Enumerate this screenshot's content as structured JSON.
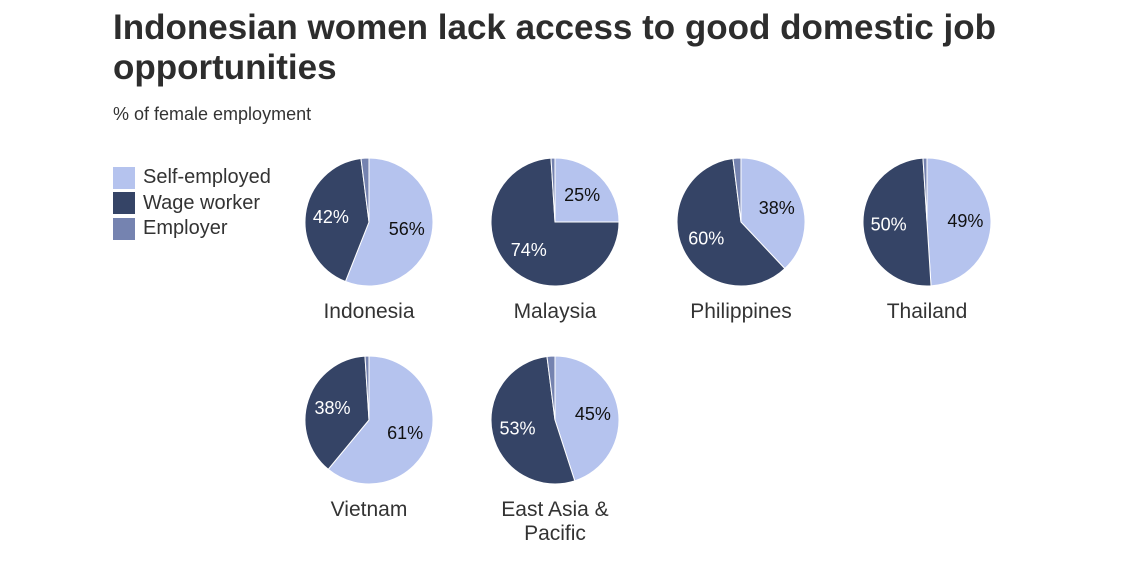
{
  "header": {
    "title": "Indonesian women lack access to good domestic job opportunities",
    "subtitle": "% of female employment"
  },
  "legend": [
    {
      "label": "Self-employed",
      "color": "#b5c3ee"
    },
    {
      "label": "Wage worker",
      "color": "#354466"
    },
    {
      "label": "Employer",
      "color": "#7583b0"
    }
  ],
  "chart_data": {
    "type": "pie",
    "title": "Indonesian women lack access to good domestic job opportunities",
    "subtitle": "% of female employment",
    "series_names": [
      "Self-employed",
      "Wage worker",
      "Employer"
    ],
    "colors": [
      "#b5c3ee",
      "#354466",
      "#7583b0"
    ],
    "legend_position": "left",
    "pies": [
      {
        "name": "Indonesia",
        "values": [
          56,
          42,
          2
        ]
      },
      {
        "name": "Malaysia",
        "values": [
          25,
          74,
          1
        ]
      },
      {
        "name": "Philippines",
        "values": [
          38,
          60,
          2
        ]
      },
      {
        "name": "Thailand",
        "values": [
          49,
          50,
          1
        ]
      },
      {
        "name": "Vietnam",
        "values": [
          61,
          38,
          1
        ]
      },
      {
        "name": "East Asia & Pacific",
        "values": [
          45,
          53,
          2
        ]
      }
    ]
  }
}
